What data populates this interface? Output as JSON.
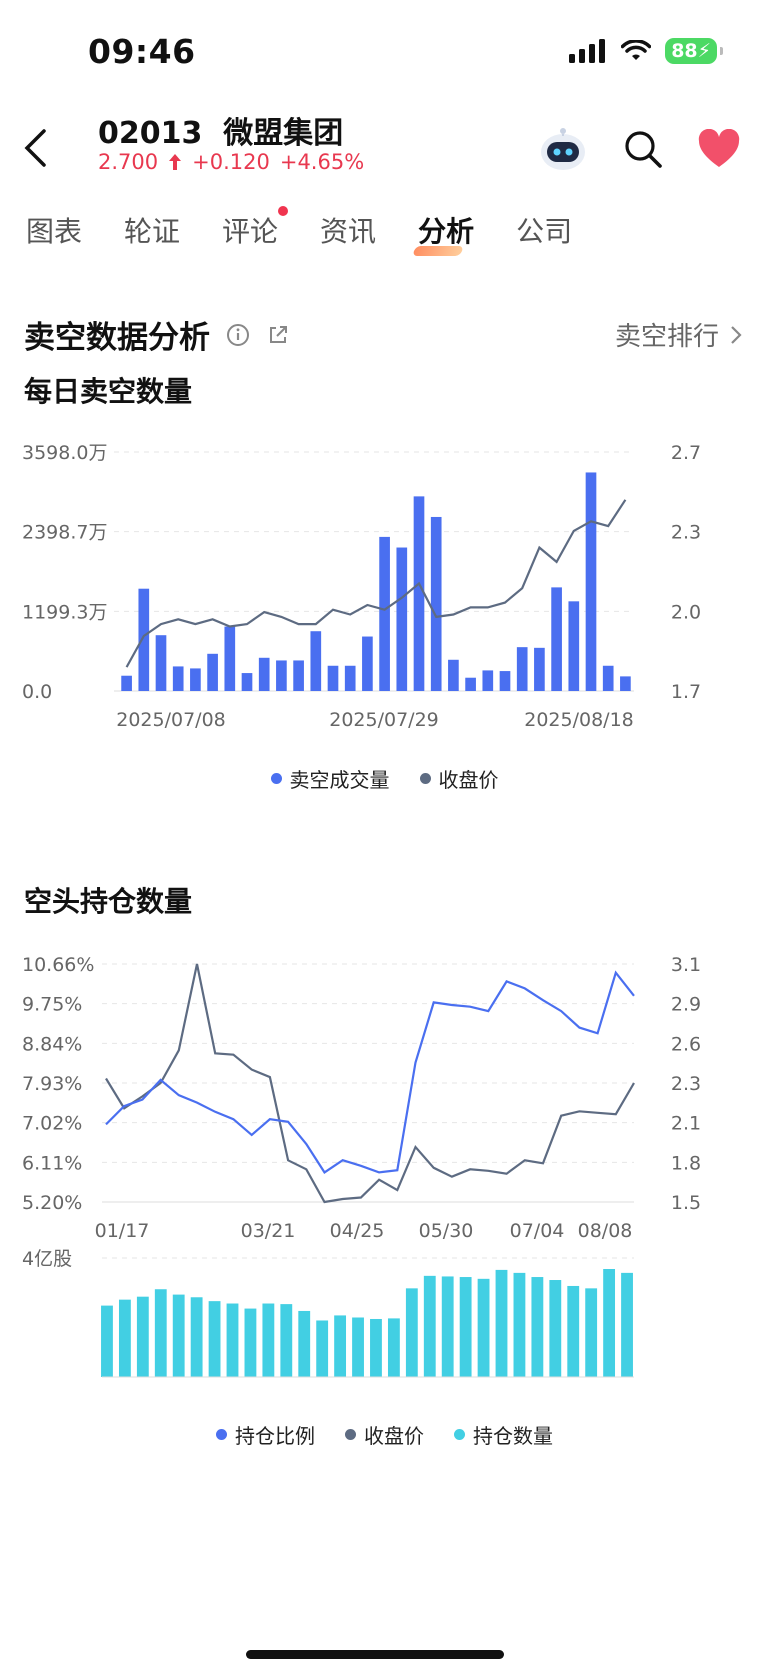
{
  "status": {
    "time": "09:46",
    "battery": "88"
  },
  "header": {
    "code": "02013",
    "name": "微盟集团",
    "price": "2.700",
    "change": "+0.120",
    "change_pct": "+4.65%"
  },
  "tabs": [
    "图表",
    "轮证",
    "评论",
    "资讯",
    "分析",
    "公司"
  ],
  "active_tab": "分析",
  "section": {
    "title": "卖空数据分析",
    "rank_link": "卖空排行"
  },
  "chart1": {
    "title": "每日卖空数量",
    "legend": [
      "卖空成交量",
      "收盘价"
    ],
    "colors": {
      "bar": "#4a6ff0",
      "line": "#5d6b82"
    },
    "y_left_ticks": [
      "3598.0万",
      "2398.7万",
      "1199.3万",
      "0.0"
    ],
    "y_right_ticks": [
      "2.7",
      "2.3",
      "2.0",
      "1.7"
    ],
    "x_ticks": [
      "2025/07/08",
      "2025/07/29",
      "2025/08/18"
    ]
  },
  "chart2": {
    "title": "空头持仓数量",
    "legend": [
      "持仓比例",
      "收盘价",
      "持仓数量"
    ],
    "colors": {
      "ratio": "#4a6ff0",
      "price": "#5d6b82",
      "bar": "#42cfe3"
    },
    "y_left_ticks": [
      "10.66%",
      "9.75%",
      "8.84%",
      "7.93%",
      "7.02%",
      "6.11%",
      "5.20%"
    ],
    "y_right_ticks": [
      "3.1",
      "2.9",
      "2.6",
      "2.3",
      "2.1",
      "1.8",
      "1.5"
    ],
    "x_ticks": [
      "01/17",
      "03/21",
      "04/25",
      "05/30",
      "07/04",
      "08/08"
    ],
    "bar_axis_label": "4亿股"
  },
  "chart_data": [
    {
      "type": "bar",
      "title": "每日卖空数量",
      "series": [
        {
          "name": "卖空成交量",
          "unit": "万",
          "values": [
            230,
            1540,
            840,
            370,
            340,
            560,
            970,
            270,
            500,
            460,
            460,
            900,
            380,
            380,
            820,
            2320,
            2160,
            2930,
            2620,
            470,
            200,
            310,
            300,
            660,
            650,
            1560,
            1350,
            3290,
            380,
            220
          ]
        },
        {
          "name": "收盘价",
          "values": [
            1.8,
            1.93,
            1.98,
            2.0,
            1.98,
            2.0,
            1.97,
            1.98,
            2.03,
            2.01,
            1.98,
            1.98,
            2.04,
            2.02,
            2.06,
            2.04,
            2.09,
            2.15,
            2.01,
            2.02,
            2.05,
            2.05,
            2.07,
            2.13,
            2.3,
            2.24,
            2.37,
            2.41,
            2.39,
            2.5
          ]
        }
      ],
      "x_labels": [
        "2025/07/08",
        "2025/07/29",
        "2025/08/18"
      ],
      "ylim_left": [
        0,
        3598.0
      ],
      "ylim_right": [
        1.7,
        2.7
      ]
    },
    {
      "type": "line",
      "title": "空头持仓数量",
      "x_labels": [
        "01/17",
        "03/21",
        "04/25",
        "05/30",
        "07/04",
        "08/08"
      ],
      "series": [
        {
          "name": "持仓比例",
          "unit": "%",
          "values": [
            6.98,
            7.4,
            7.55,
            8.0,
            7.65,
            7.48,
            7.27,
            7.1,
            6.74,
            7.1,
            7.04,
            6.53,
            5.88,
            6.16,
            6.03,
            5.88,
            5.93,
            8.4,
            9.78,
            9.72,
            9.68,
            9.58,
            10.26,
            10.1,
            9.83,
            9.58,
            9.2,
            9.07,
            10.46,
            9.93
          ]
        },
        {
          "name": "收盘价",
          "values": [
            2.33,
            2.13,
            2.21,
            2.3,
            2.52,
            3.1,
            2.5,
            2.49,
            2.39,
            2.34,
            1.78,
            1.72,
            1.5,
            1.52,
            1.53,
            1.65,
            1.58,
            1.87,
            1.73,
            1.67,
            1.72,
            1.71,
            1.69,
            1.78,
            1.76,
            2.08,
            2.11,
            2.1,
            2.09,
            2.3
          ]
        },
        {
          "name": "持仓数量",
          "unit": "亿股",
          "values": [
            2.4,
            2.6,
            2.7,
            2.95,
            2.77,
            2.68,
            2.55,
            2.47,
            2.3,
            2.47,
            2.45,
            2.22,
            1.9,
            2.07,
            2.0,
            1.95,
            1.97,
            2.98,
            3.4,
            3.38,
            3.36,
            3.3,
            3.6,
            3.5,
            3.36,
            3.26,
            3.06,
            2.98,
            3.63,
            3.5
          ]
        }
      ],
      "ylim_ratio": [
        5.2,
        10.66
      ],
      "ylim_price": [
        1.5,
        3.1
      ],
      "bar_max": 4
    }
  ]
}
